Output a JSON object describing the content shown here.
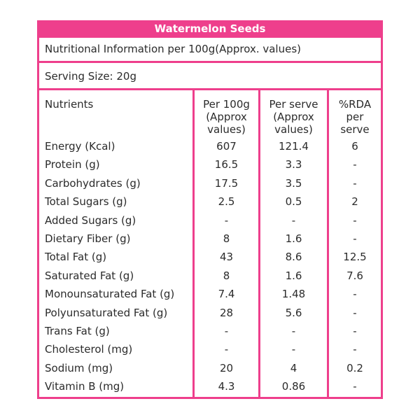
{
  "product": {
    "title": "Watermelon Seeds"
  },
  "info": {
    "subtitle": "Nutritional Information per 100g(Approx. values)",
    "serving_size": "Serving Size:  20g"
  },
  "table": {
    "headers": {
      "nutrients": "Nutrients",
      "per_100g": "Per 100g\n(Approx\nvalues)",
      "per_serve": "Per serve\n(Approx\nvalues)",
      "rda": "%RDA\nper\nserve"
    },
    "rows": [
      {
        "name": "Energy (Kcal)",
        "per_100g": "607",
        "per_serve": "121.4",
        "rda": "6"
      },
      {
        "name": "Protein (g)",
        "per_100g": "16.5",
        "per_serve": "3.3",
        "rda": "-"
      },
      {
        "name": "Carbohydrates (g)",
        "per_100g": "17.5",
        "per_serve": "3.5",
        "rda": "-"
      },
      {
        "name": "Total Sugars (g)",
        "per_100g": "2.5",
        "per_serve": "0.5",
        "rda": "2"
      },
      {
        "name": "Added Sugars (g)",
        "per_100g": "-",
        "per_serve": "-",
        "rda": "-"
      },
      {
        "name": "Dietary Fiber (g)",
        "per_100g": "8",
        "per_serve": "1.6",
        "rda": "-"
      },
      {
        "name": "Total Fat (g)",
        "per_100g": "43",
        "per_serve": "8.6",
        "rda": "12.5"
      },
      {
        "name": "Saturated Fat (g)",
        "per_100g": "8",
        "per_serve": "1.6",
        "rda": "7.6"
      },
      {
        "name": "Monounsaturated Fat (g)",
        "per_100g": "7.4",
        "per_serve": "1.48",
        "rda": "-"
      },
      {
        "name": "Polyunsaturated Fat (g)",
        "per_100g": "28",
        "per_serve": "5.6",
        "rda": "-"
      },
      {
        "name": "Trans Fat (g)",
        "per_100g": "-",
        "per_serve": "-",
        "rda": "-"
      },
      {
        "name": "Cholesterol (mg)",
        "per_100g": "-",
        "per_serve": "-",
        "rda": "-"
      },
      {
        "name": "Sodium (mg)",
        "per_100g": "20",
        "per_serve": "4",
        "rda": "0.2"
      },
      {
        "name": "Vitamin B (mg)",
        "per_100g": "4.3",
        "per_serve": "0.86",
        "rda": "-"
      }
    ]
  },
  "colors": {
    "accent": "#ee3f8c",
    "text": "#2b2b2b",
    "background": "#ffffff"
  }
}
